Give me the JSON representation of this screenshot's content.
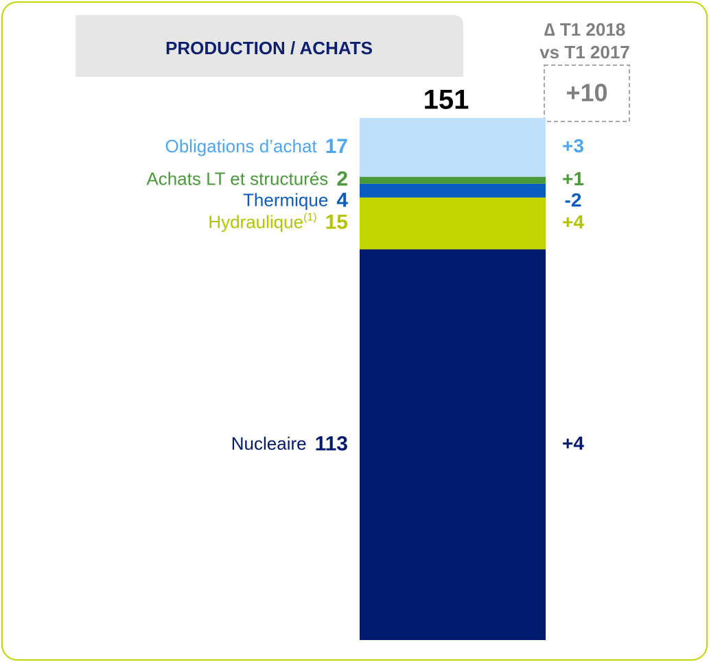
{
  "chart_data": {
    "type": "stacked-bar",
    "title": "PRODUCTION / ACHATS",
    "delta_title": [
      "∆ T1 2018",
      "vs T1 2017"
    ],
    "total": 151,
    "total_delta": {
      "value": 10,
      "label": "+10"
    },
    "series": [
      {
        "name": "Nucleaire",
        "color": "#001a6e",
        "text_color": "#001a6e",
        "values": [
          113
        ],
        "delta": {
          "value": 4,
          "label": "+4"
        }
      },
      {
        "name": "Hydraulique",
        "note_mark": "(1)",
        "color": "#c3d600",
        "text_color": "#b3c400",
        "values": [
          15
        ],
        "delta": {
          "value": 4,
          "label": "+4"
        }
      },
      {
        "name": "Thermique",
        "color": "#0a5cbf",
        "text_color": "#0a5cbf",
        "values": [
          4
        ],
        "delta": {
          "value": -2,
          "label": "-2"
        }
      },
      {
        "name": "Achats LT et structurés",
        "color": "#4a9a3a",
        "text_color": "#4a9a3a",
        "values": [
          2
        ],
        "delta": {
          "value": 1,
          "label": "+1"
        }
      },
      {
        "name": "Obligations d’achat",
        "color": "#bfdffb",
        "text_color": "#4da6ef",
        "values": [
          17
        ],
        "delta": {
          "value": 3,
          "label": "+3"
        }
      }
    ]
  }
}
